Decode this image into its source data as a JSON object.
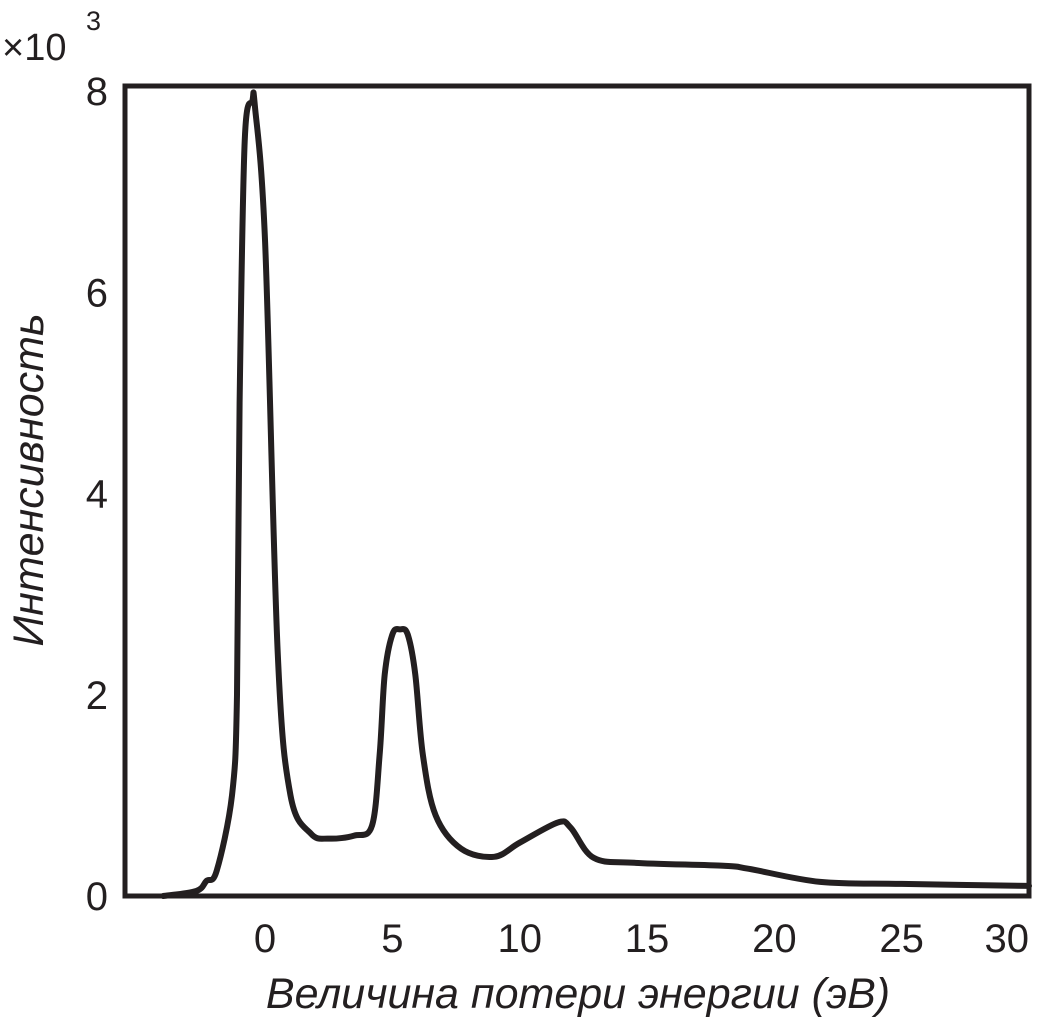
{
  "chart_data": {
    "type": "line",
    "title": "",
    "xlabel": "Величина потери энергии (эВ)",
    "ylabel": "Интенсивность",
    "y_multiplier": "×10",
    "y_multiplier_exp": "3",
    "xlim": [
      -5.5,
      30
    ],
    "ylim": [
      0,
      8.05
    ],
    "x_ticks": [
      0,
      5,
      10,
      15,
      20,
      25,
      30
    ],
    "y_ticks": [
      0,
      2,
      4,
      6,
      8
    ],
    "x_tick_labels": [
      "0",
      "5",
      "10",
      "15",
      "20",
      "25",
      "30"
    ],
    "y_tick_labels": [
      "0",
      "2",
      "4",
      "6",
      "8"
    ],
    "grid": false,
    "line_color": "#231f20",
    "series": [
      {
        "name": "",
        "x": [
          -4.0,
          -2.7,
          -2.3,
          -1.9,
          -1.3,
          -1.1,
          -1.0,
          -0.8,
          -0.5,
          -0.4,
          0.0,
          0.5,
          1.0,
          1.8,
          2.5,
          3.5,
          4.2,
          4.5,
          4.7,
          5.0,
          5.3,
          5.6,
          5.9,
          6.2,
          6.7,
          7.7,
          9.0,
          10.0,
          11.5,
          12.0,
          12.9,
          14.5,
          18.0,
          19.0,
          21.8,
          25.0,
          30.0
        ],
        "y": [
          0.0,
          0.05,
          0.15,
          0.25,
          1.0,
          2.0,
          4.9,
          7.5,
          7.9,
          7.85,
          6.5,
          2.4,
          1.0,
          0.62,
          0.57,
          0.6,
          0.7,
          1.4,
          2.2,
          2.6,
          2.65,
          2.6,
          2.2,
          1.4,
          0.8,
          0.47,
          0.39,
          0.53,
          0.73,
          0.68,
          0.38,
          0.33,
          0.3,
          0.27,
          0.14,
          0.12,
          0.1
        ]
      }
    ]
  }
}
